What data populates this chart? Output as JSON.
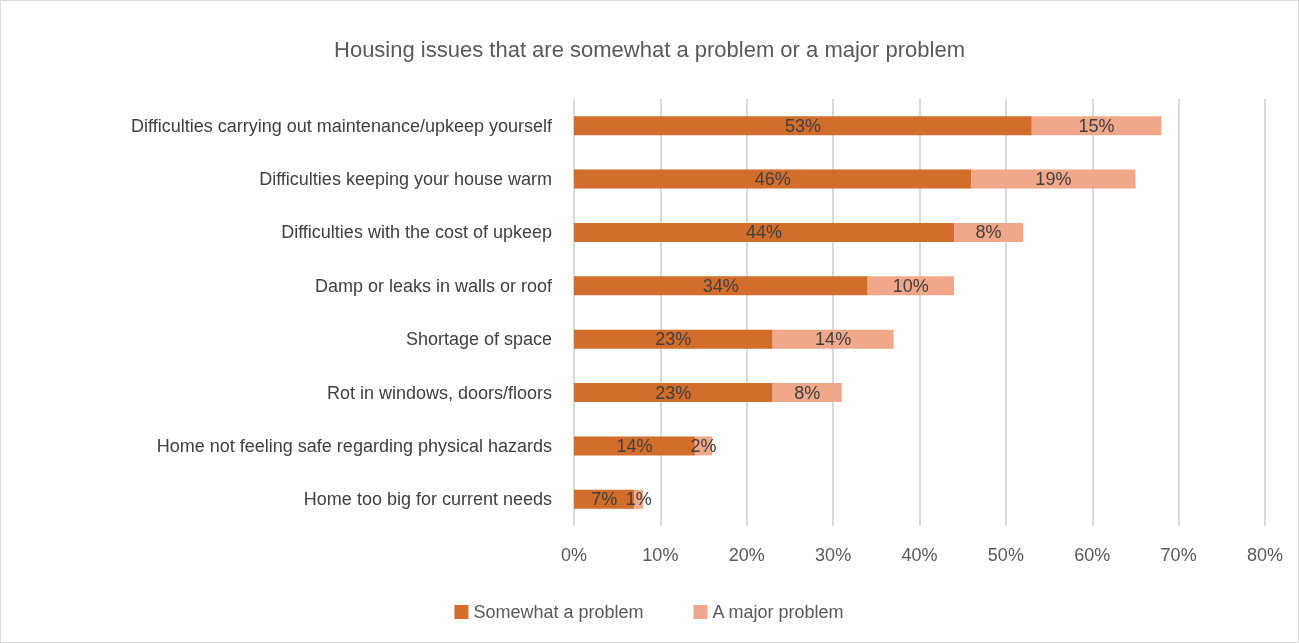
{
  "chart_data": {
    "type": "bar",
    "orientation": "horizontal",
    "stacked": true,
    "title": "Housing issues that are somewhat a problem or a major problem",
    "categories": [
      "Difficulties carrying out maintenance/upkeep yourself",
      "Difficulties keeping your house warm",
      "Difficulties with the cost of upkeep",
      "Damp or leaks in walls or roof",
      "Shortage of space",
      "Rot in windows, doors/floors",
      "Home not feeling safe regarding physical hazards",
      "Home too big for current needs"
    ],
    "series": [
      {
        "name": "Somewhat a problem",
        "color": "#d26d2b",
        "values": [
          53,
          46,
          44,
          34,
          23,
          23,
          14,
          7
        ],
        "value_labels": [
          "53%",
          "46%",
          "44%",
          "34%",
          "23%",
          "23%",
          "14%",
          "7%"
        ]
      },
      {
        "name": "A major problem",
        "color": "#f1a78a",
        "values": [
          15,
          19,
          8,
          10,
          14,
          8,
          2,
          1
        ],
        "value_labels": [
          "15%",
          "19%",
          "8%",
          "10%",
          "14%",
          "8%",
          "2%",
          "1%"
        ]
      }
    ],
    "xlim": [
      0,
      80
    ],
    "xticks": [
      {
        "value": 0,
        "label": "0%"
      },
      {
        "value": 10,
        "label": "10%"
      },
      {
        "value": 20,
        "label": "20%"
      },
      {
        "value": 30,
        "label": "30%"
      },
      {
        "value": 40,
        "label": "40%"
      },
      {
        "value": 50,
        "label": "50%"
      },
      {
        "value": 60,
        "label": "60%"
      },
      {
        "value": 70,
        "label": "70%"
      },
      {
        "value": 80,
        "label": "80%"
      }
    ],
    "grid": "x",
    "legend": "bottom"
  }
}
